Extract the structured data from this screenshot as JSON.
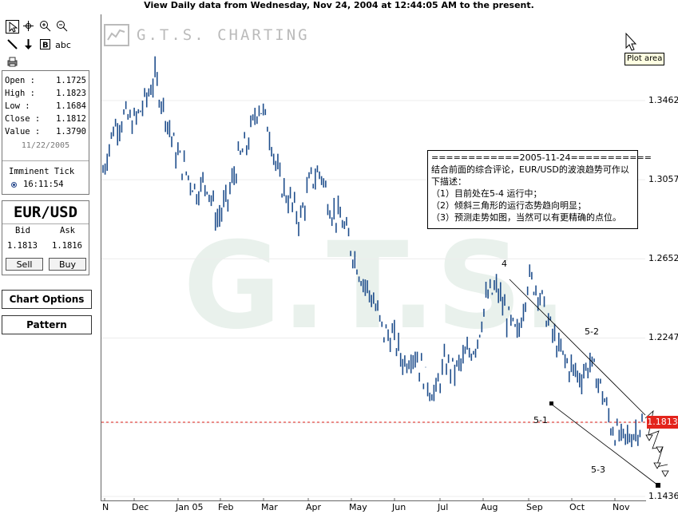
{
  "title": "View Daily  data from Wednesday, Nov 24, 2004 at 12:44:05 AM to the present.",
  "logo": "G.T.S. CHARTING",
  "watermark": "G.T.S.",
  "tooltip": "Plot area",
  "tools": {
    "row1": [
      "pointer-icon",
      "crosshair-icon",
      "zoom-in-icon",
      "zoom-out-icon"
    ],
    "row2": [
      "line-icon",
      "arrow-down-icon",
      "text-b-icon"
    ],
    "abc": "abc"
  },
  "quote": {
    "rows": [
      {
        "label": "Open  :",
        "value": "1.1725"
      },
      {
        "label": "High  :",
        "value": "1.1823"
      },
      {
        "label": "Low   :",
        "value": "1.1684"
      },
      {
        "label": "Close :",
        "value": "1.1812"
      },
      {
        "label": "Value :",
        "value": "1.3790"
      }
    ],
    "date": "11/22/2005",
    "imminent_label": "Imminent Tick",
    "imminent_time": "16:11:54"
  },
  "fx": {
    "pair": "EUR/USD",
    "bid_label": "Bid",
    "ask_label": "Ask",
    "bid": "1.1813",
    "ask": "1.1816",
    "sell": "Sell",
    "buy": "Buy"
  },
  "buttons": {
    "chart_options": "Chart Options",
    "pattern": "Pattern"
  },
  "note": {
    "lines": [
      "============2005-11-24===========",
      "结合前面的综合评论，EUR/USD的波浪趋势可作以",
      "下描述：",
      "（1）目前处在5-4  运行中；",
      "（2）倾斜三角形的运行态势趋向明显；",
      "（3）预测走势如图，当然可以有更精确的点位。"
    ]
  },
  "wave_labels": {
    "w4": "4",
    "w52": "5-2",
    "w51": "5-1",
    "w53": "5-3"
  },
  "current_price": "1.1813",
  "colors": {
    "candles": "#1f4e8c",
    "price_line": "#e3241c",
    "price_box": "#e3241c",
    "watermark": "#e9f1ec"
  },
  "chart_data": {
    "type": "line",
    "ylim": [
      1.1436,
      1.379
    ],
    "yticks": [
      "1.3462",
      "1.3057",
      "1.2652",
      "1.2247",
      "1.1813",
      "1.1436"
    ],
    "xticks": [
      "N",
      "Dec",
      "Jan 05",
      "Feb",
      "Mar",
      "Apr",
      "May",
      "Jun",
      "Jul",
      "Aug",
      "Sep",
      "Oct",
      "Nov"
    ],
    "series": [
      {
        "x": [
          "2004-11-24",
          "2004-12-01",
          "2004-12-08",
          "2004-12-15",
          "2004-12-22",
          "2004-12-28",
          "2005-01-05",
          "2005-01-12",
          "2005-01-19",
          "2005-01-26",
          "2005-02-02",
          "2005-02-09",
          "2005-02-16",
          "2005-02-23",
          "2005-03-02",
          "2005-03-09",
          "2005-03-16",
          "2005-03-23",
          "2005-03-30",
          "2005-04-06",
          "2005-04-13",
          "2005-04-20",
          "2005-04-27",
          "2005-05-04",
          "2005-05-11",
          "2005-05-18",
          "2005-05-25",
          "2005-06-01",
          "2005-06-08",
          "2005-06-15",
          "2005-06-22",
          "2005-06-29",
          "2005-07-06",
          "2005-07-13",
          "2005-07-20",
          "2005-07-27",
          "2005-08-03",
          "2005-08-10",
          "2005-08-17",
          "2005-08-24",
          "2005-08-31",
          "2005-09-07",
          "2005-09-14",
          "2005-09-21",
          "2005-09-28",
          "2005-10-05",
          "2005-10-12",
          "2005-10-19",
          "2005-10-26",
          "2005-11-02",
          "2005-11-09",
          "2005-11-16",
          "2005-11-22"
        ],
        "values": [
          1.31,
          1.332,
          1.338,
          1.335,
          1.345,
          1.358,
          1.34,
          1.32,
          1.31,
          1.3,
          1.305,
          1.285,
          1.295,
          1.315,
          1.325,
          1.345,
          1.332,
          1.305,
          1.295,
          1.285,
          1.305,
          1.31,
          1.29,
          1.285,
          1.27,
          1.255,
          1.245,
          1.228,
          1.225,
          1.212,
          1.218,
          1.205,
          1.195,
          1.212,
          1.208,
          1.215,
          1.222,
          1.245,
          1.25,
          1.235,
          1.225,
          1.255,
          1.25,
          1.232,
          1.218,
          1.21,
          1.205,
          1.212,
          1.2,
          1.18,
          1.172,
          1.175,
          1.181
        ]
      }
    ],
    "annotations": [
      "4",
      "5-2",
      "5-1",
      "5-3"
    ]
  }
}
